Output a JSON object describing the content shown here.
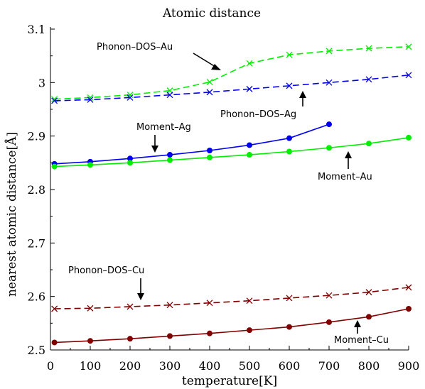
{
  "chart_data": {
    "type": "line",
    "title": "Atomic distance",
    "xlabel": "temperature[K]",
    "ylabel": "nearest atomic distance[Å]",
    "xlim": [
      0,
      900
    ],
    "ylim": [
      2.5,
      3.1
    ],
    "xticks": [
      "0",
      "100",
      "200",
      "300",
      "400",
      "500",
      "600",
      "700",
      "800",
      "900"
    ],
    "yticks": [
      "2.5",
      "2.6",
      "2.7",
      "2.8",
      "2.9",
      "3",
      "3.1"
    ],
    "grid": false,
    "series": [
      {
        "name": "Phonon-DOS-Au",
        "color": "#00ee00",
        "dash": true,
        "marker": "x",
        "x": [
          10,
          100,
          200,
          300,
          400,
          500,
          600,
          700,
          800,
          900
        ],
        "y": [
          2.969,
          2.972,
          2.977,
          2.985,
          3.001,
          3.036,
          3.052,
          3.059,
          3.064,
          3.067
        ]
      },
      {
        "name": "Phonon-DOS-Ag",
        "color": "#0000ee",
        "dash": true,
        "marker": "x",
        "x": [
          10,
          100,
          200,
          300,
          400,
          500,
          600,
          700,
          800,
          900
        ],
        "y": [
          2.966,
          2.968,
          2.972,
          2.977,
          2.982,
          2.988,
          2.994,
          3.0,
          3.006,
          3.014
        ]
      },
      {
        "name": "Moment-Ag",
        "color": "#0000ee",
        "dash": false,
        "marker": "o",
        "x": [
          10,
          100,
          200,
          300,
          400,
          500,
          600,
          700
        ],
        "y": [
          2.848,
          2.852,
          2.858,
          2.865,
          2.873,
          2.883,
          2.896,
          2.922
        ]
      },
      {
        "name": "Moment-Au",
        "color": "#00ee00",
        "dash": false,
        "marker": "o",
        "x": [
          10,
          100,
          200,
          300,
          400,
          500,
          600,
          700,
          800,
          900
        ],
        "y": [
          2.843,
          2.846,
          2.85,
          2.855,
          2.86,
          2.865,
          2.871,
          2.878,
          2.886,
          2.897
        ]
      },
      {
        "name": "Phonon-DOS-Cu",
        "color": "#800000",
        "dash": true,
        "marker": "x",
        "x": [
          10,
          100,
          200,
          300,
          400,
          500,
          600,
          700,
          800,
          900
        ],
        "y": [
          2.577,
          2.578,
          2.581,
          2.584,
          2.588,
          2.592,
          2.597,
          2.602,
          2.608,
          2.617
        ]
      },
      {
        "name": "Moment-Cu",
        "color": "#800000",
        "dash": false,
        "marker": "o",
        "x": [
          10,
          100,
          200,
          300,
          400,
          500,
          600,
          700,
          800,
          900
        ],
        "y": [
          2.514,
          2.517,
          2.521,
          2.526,
          2.531,
          2.537,
          2.543,
          2.552,
          2.562,
          2.577
        ]
      }
    ],
    "annotations": [
      {
        "text": "Phonon–DOS–Au",
        "series": "Phonon-DOS-Au",
        "arrow": "diagonal"
      },
      {
        "text": "Phonon–DOS–Ag",
        "series": "Phonon-DOS-Ag",
        "arrow": "up"
      },
      {
        "text": "Moment–Ag",
        "series": "Moment-Ag",
        "arrow": "down"
      },
      {
        "text": "Moment–Au",
        "series": "Moment-Au",
        "arrow": "up"
      },
      {
        "text": "Phonon–DOS–Cu",
        "series": "Phonon-DOS-Cu",
        "arrow": "down"
      },
      {
        "text": "Moment–Cu",
        "series": "Moment-Cu",
        "arrow": "up"
      }
    ]
  }
}
